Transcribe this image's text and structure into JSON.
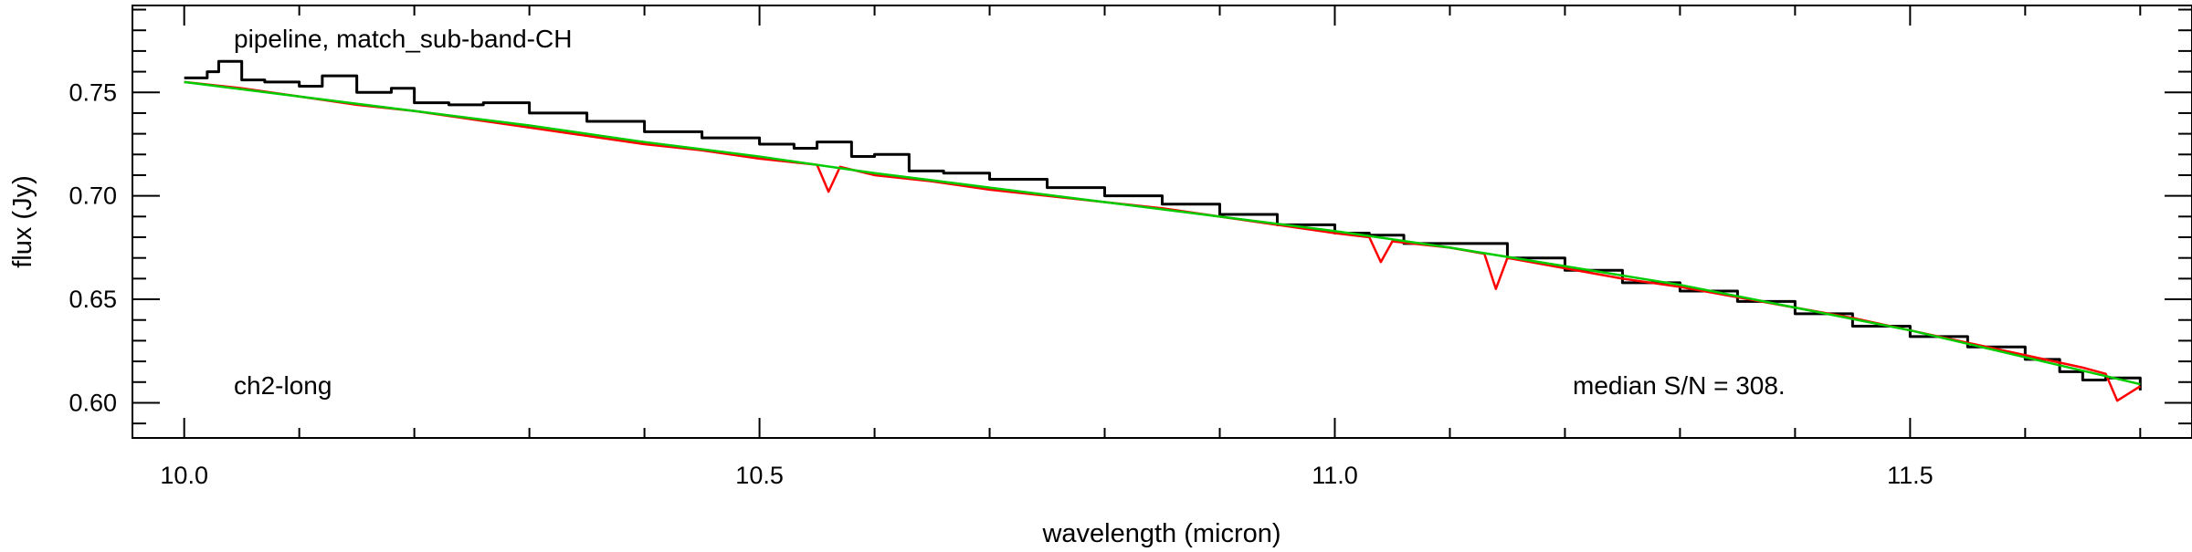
{
  "chart_data": {
    "type": "line",
    "xlabel": "wavelength (micron)",
    "ylabel": "flux (Jy)",
    "xlim": [
      9.955,
      11.745
    ],
    "ylim": [
      0.583,
      0.792
    ],
    "x_ticks": [
      10.0,
      10.5,
      11.0,
      11.5
    ],
    "x_tick_labels": [
      "10.0",
      "10.5",
      "11.0",
      "11.5"
    ],
    "y_ticks": [
      0.6,
      0.65,
      0.7,
      0.75
    ],
    "y_tick_labels": [
      "0.60",
      "0.65",
      "0.70",
      "0.75"
    ],
    "x_minor_step": 0.1,
    "y_minor_step": 0.01,
    "grid": false,
    "legend": "none",
    "annotations": {
      "top_left": "pipeline, match_sub-band-CH",
      "bottom_left": "ch2-long",
      "bottom_right": "median S/N = 308."
    },
    "series": [
      {
        "color": "#000000",
        "style": "steps",
        "x": [
          10.0,
          10.02,
          10.03,
          10.05,
          10.07,
          10.1,
          10.12,
          10.15,
          10.18,
          10.2,
          10.23,
          10.26,
          10.3,
          10.35,
          10.4,
          10.45,
          10.5,
          10.53,
          10.55,
          10.58,
          10.6,
          10.63,
          10.66,
          10.7,
          10.75,
          10.8,
          10.85,
          10.9,
          10.95,
          11.0,
          11.03,
          11.06,
          11.1,
          11.15,
          11.2,
          11.25,
          11.3,
          11.35,
          11.4,
          11.45,
          11.5,
          11.55,
          11.6,
          11.63,
          11.65,
          11.67,
          11.7
        ],
        "y": [
          0.757,
          0.76,
          0.765,
          0.756,
          0.755,
          0.753,
          0.758,
          0.75,
          0.752,
          0.745,
          0.744,
          0.745,
          0.74,
          0.736,
          0.731,
          0.728,
          0.725,
          0.723,
          0.726,
          0.719,
          0.72,
          0.712,
          0.711,
          0.708,
          0.704,
          0.7,
          0.696,
          0.691,
          0.686,
          0.682,
          0.681,
          0.677,
          0.677,
          0.67,
          0.664,
          0.658,
          0.654,
          0.649,
          0.643,
          0.637,
          0.632,
          0.627,
          0.621,
          0.615,
          0.611,
          0.612,
          0.606
        ]
      },
      {
        "color": "#ff0000",
        "style": "line",
        "x": [
          10.0,
          10.05,
          10.1,
          10.15,
          10.2,
          10.25,
          10.3,
          10.35,
          10.4,
          10.45,
          10.5,
          10.55,
          10.56,
          10.57,
          10.6,
          10.65,
          10.7,
          10.75,
          10.8,
          10.85,
          10.9,
          10.95,
          11.0,
          11.03,
          11.04,
          11.05,
          11.1,
          11.13,
          11.14,
          11.15,
          11.2,
          11.25,
          11.3,
          11.35,
          11.4,
          11.45,
          11.5,
          11.55,
          11.6,
          11.65,
          11.67,
          11.68,
          11.7
        ],
        "y": [
          0.755,
          0.752,
          0.748,
          0.744,
          0.741,
          0.737,
          0.733,
          0.729,
          0.725,
          0.722,
          0.718,
          0.715,
          0.702,
          0.714,
          0.71,
          0.707,
          0.703,
          0.7,
          0.697,
          0.694,
          0.69,
          0.686,
          0.682,
          0.68,
          0.668,
          0.678,
          0.675,
          0.672,
          0.655,
          0.67,
          0.665,
          0.66,
          0.656,
          0.651,
          0.646,
          0.641,
          0.635,
          0.629,
          0.623,
          0.617,
          0.614,
          0.601,
          0.608
        ]
      },
      {
        "color": "#00cc00",
        "style": "line",
        "x": [
          10.0,
          10.1,
          10.2,
          10.3,
          10.4,
          10.5,
          10.6,
          10.7,
          10.8,
          10.9,
          11.0,
          11.1,
          11.2,
          11.3,
          11.4,
          11.5,
          11.6,
          11.7
        ],
        "y": [
          0.755,
          0.748,
          0.741,
          0.734,
          0.726,
          0.719,
          0.711,
          0.704,
          0.697,
          0.69,
          0.683,
          0.675,
          0.666,
          0.657,
          0.646,
          0.635,
          0.622,
          0.609
        ]
      }
    ]
  }
}
